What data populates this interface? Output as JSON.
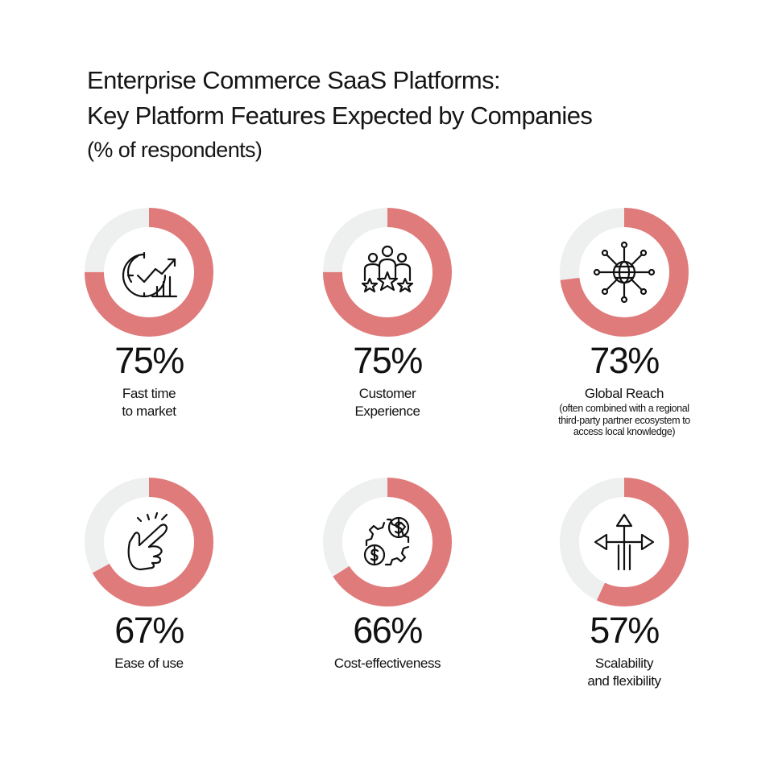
{
  "chart_data": {
    "type": "pie",
    "title": "Enterprise Commerce SaaS Platforms:",
    "subtitle": "Key Platform Features Expected by Companies",
    "unit": "(% of respondents)",
    "items": [
      {
        "pct_label": "75%",
        "value": 75,
        "label_lines": [
          "Fast time",
          "to market"
        ],
        "note_lines": [],
        "icon": "stopwatch-growth-chart-icon"
      },
      {
        "pct_label": "75%",
        "value": 75,
        "label_lines": [
          "Customer",
          "Experience"
        ],
        "note_lines": [],
        "icon": "customers-rating-stars-icon"
      },
      {
        "pct_label": "73%",
        "value": 73,
        "label_lines": [
          "Global Reach"
        ],
        "note_lines": [
          "(often combined with a regional",
          "third-party partner ecosystem to",
          "access local knowledge)"
        ],
        "icon": "globe-network-icon"
      },
      {
        "pct_label": "67%",
        "value": 67,
        "label_lines": [
          "Ease of use"
        ],
        "note_lines": [],
        "icon": "finger-snap-hand-icon"
      },
      {
        "pct_label": "66%",
        "value": 66,
        "label_lines": [
          "Cost-effectiveness"
        ],
        "note_lines": [],
        "icon": "gear-dollar-coins-icon"
      },
      {
        "pct_label": "57%",
        "value": 57,
        "label_lines": [
          "Scalability",
          "and flexibility"
        ],
        "note_lines": [],
        "icon": "three-way-arrows-icon"
      }
    ],
    "colors": {
      "filled": "#e07b7b",
      "remainder": "#eef0ef"
    }
  }
}
